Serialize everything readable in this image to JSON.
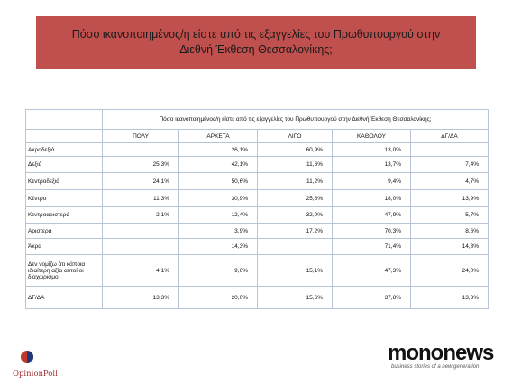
{
  "title": "Πόσο ικανοποιημένος/η είστε από τις εξαγγελίες του Πρωθυπουργού στην Διεθνή Έκθεση Θεσσαλονίκης;",
  "table": {
    "header": "Πόσο ικανοποιημένος/η είστε από τις εξαγγελίες του Πρωθυπουργού στην Διεθνή Έκθεση Θεσσαλονίκης;",
    "columns": [
      "ΠΟΛΥ",
      "ΑΡΚΕΤΑ",
      "ΛΙΓΟ",
      "ΚΑΘΟΛΟΥ",
      "ΔΓ/ΔΑ"
    ],
    "rows": [
      {
        "label": "Ακροδεξιά",
        "cells": [
          null,
          "26,1%",
          "60,9%",
          "13,0%",
          null
        ]
      },
      {
        "label": "Δεξιά",
        "cells": [
          "25,3%",
          "42,1%",
          "11,6%",
          "13,7%",
          "7,4%"
        ]
      },
      {
        "label": "Κεντροδεξιά",
        "cells": [
          "24,1%",
          "50,6%",
          "11,2%",
          "9,4%",
          "4,7%"
        ]
      },
      {
        "label": "Κέντρο",
        "cells": [
          "11,3%",
          "30,9%",
          "25,8%",
          "18,0%",
          "13,9%"
        ]
      },
      {
        "label": "Κεντροαριστερά",
        "cells": [
          "2,1%",
          "12,4%",
          "32,0%",
          "47,9%",
          "5,7%"
        ]
      },
      {
        "label": "Αριστερά",
        "cells": [
          null,
          "3,9%",
          "17,2%",
          "70,3%",
          "8,6%"
        ]
      },
      {
        "label": "Άκρα",
        "cells": [
          null,
          "14,3%",
          null,
          "71,4%",
          "14,3%"
        ]
      },
      {
        "label": "Δεν νομίζω ότι κάποια ιδιαίτερη αξία αυτοί οι διαχωρισμοί",
        "cells": [
          "4,1%",
          "9,6%",
          "15,1%",
          "47,3%",
          "24,0%"
        ]
      },
      {
        "label": "ΔΓ/ΔΑ",
        "cells": [
          "13,3%",
          "20,0%",
          "15,6%",
          "37,8%",
          "13,3%"
        ]
      }
    ]
  },
  "logos": {
    "left": "OpinionPoll",
    "right": "mononews",
    "right_tagline": "business stories of a new generation"
  }
}
